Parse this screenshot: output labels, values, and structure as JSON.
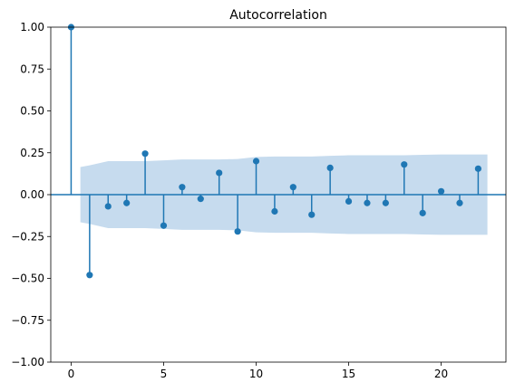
{
  "chart_data": {
    "type": "stem",
    "title": "Autocorrelation",
    "xlabel": "",
    "ylabel": "",
    "xlim": [
      -1.1,
      23.5
    ],
    "ylim": [
      -1.0,
      1.0
    ],
    "xticks": [
      0,
      5,
      10,
      15,
      20
    ],
    "yticks": [
      -1.0,
      -0.75,
      -0.5,
      -0.25,
      0.0,
      0.25,
      0.5,
      0.75,
      1.0
    ],
    "xtick_labels": [
      "0",
      "5",
      "10",
      "15",
      "20"
    ],
    "ytick_labels": [
      "−1.00",
      "−0.75",
      "−0.50",
      "−0.25",
      "0.00",
      "0.25",
      "0.50",
      "0.75",
      "1.00"
    ],
    "lags": [
      0,
      1,
      2,
      3,
      4,
      5,
      6,
      7,
      8,
      9,
      10,
      11,
      12,
      13,
      14,
      15,
      16,
      17,
      18,
      19,
      20,
      21,
      22
    ],
    "values": [
      1.0,
      -0.48,
      -0.07,
      -0.05,
      0.245,
      -0.185,
      0.045,
      -0.025,
      0.13,
      -0.22,
      0.2,
      -0.1,
      0.045,
      -0.12,
      0.16,
      -0.04,
      -0.05,
      -0.05,
      0.18,
      -0.11,
      0.02,
      -0.05,
      0.155
    ],
    "confidence_band": {
      "lags": [
        0.5,
        1,
        2,
        3,
        4,
        5,
        6,
        7,
        8,
        9,
        10,
        11,
        12,
        13,
        14,
        15,
        16,
        17,
        18,
        19,
        20,
        21,
        22,
        22.5
      ],
      "upper": [
        0.165,
        0.175,
        0.2,
        0.2,
        0.2,
        0.205,
        0.21,
        0.21,
        0.21,
        0.213,
        0.225,
        0.228,
        0.228,
        0.228,
        0.232,
        0.235,
        0.235,
        0.235,
        0.235,
        0.238,
        0.24,
        0.24,
        0.24,
        0.24
      ]
    },
    "colors": {
      "stem": "#1f77b4",
      "band": "#c6dbee",
      "axis": "#000000"
    },
    "grid": false
  }
}
